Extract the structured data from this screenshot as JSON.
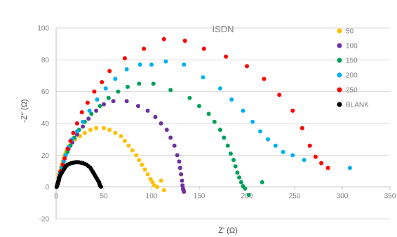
{
  "chart_data": {
    "type": "scatter",
    "title": "ISDN",
    "xlabel": "Z' (Ω)",
    "ylabel": "-Z'' (Ω)",
    "xlim": [
      0,
      350
    ],
    "ylim": [
      -20,
      100
    ],
    "x_ticks": [
      "0",
      "50",
      "100",
      "150",
      "200",
      "250",
      "300",
      "350"
    ],
    "y_ticks": [
      "-20",
      "0",
      "20",
      "40",
      "60",
      "80",
      "100"
    ],
    "grid": "horizontal",
    "legend_position": "right",
    "series": [
      {
        "name": "50",
        "color": "#ffc000",
        "points": [
          [
            1,
            0.5
          ],
          [
            1.5,
            2
          ],
          [
            2,
            4
          ],
          [
            2.5,
            6
          ],
          [
            3,
            8
          ],
          [
            4,
            10
          ],
          [
            5,
            12
          ],
          [
            6,
            14
          ],
          [
            7,
            16
          ],
          [
            8,
            18
          ],
          [
            9,
            20
          ],
          [
            10,
            22
          ],
          [
            12,
            24
          ],
          [
            14,
            26
          ],
          [
            16,
            28
          ],
          [
            20,
            30
          ],
          [
            25,
            32
          ],
          [
            30,
            34
          ],
          [
            36,
            36
          ],
          [
            42,
            37
          ],
          [
            50,
            37
          ],
          [
            56,
            36
          ],
          [
            62,
            34
          ],
          [
            68,
            32
          ],
          [
            72,
            29
          ],
          [
            76,
            26
          ],
          [
            80,
            23
          ],
          [
            84,
            20
          ],
          [
            87,
            17
          ],
          [
            90,
            14
          ],
          [
            93,
            11
          ],
          [
            96,
            8
          ],
          [
            99,
            5
          ],
          [
            101,
            3
          ],
          [
            103,
            1
          ],
          [
            106,
            0
          ],
          [
            110,
            4
          ],
          [
            113,
            -2
          ]
        ]
      },
      {
        "name": "100",
        "color": "#7030a0",
        "points": [
          [
            1,
            0.5
          ],
          [
            2,
            3
          ],
          [
            3,
            6
          ],
          [
            4,
            9
          ],
          [
            6,
            12
          ],
          [
            8,
            16
          ],
          [
            10,
            20
          ],
          [
            13,
            24
          ],
          [
            17,
            28
          ],
          [
            22,
            33
          ],
          [
            28,
            38
          ],
          [
            34,
            43
          ],
          [
            42,
            48
          ],
          [
            50,
            52
          ],
          [
            60,
            54
          ],
          [
            74,
            54
          ],
          [
            86,
            51
          ],
          [
            96,
            48
          ],
          [
            104,
            44
          ],
          [
            110,
            40
          ],
          [
            116,
            36
          ],
          [
            120,
            31
          ],
          [
            124,
            26
          ],
          [
            127,
            20
          ],
          [
            129,
            16
          ],
          [
            130,
            12
          ],
          [
            131,
            8
          ],
          [
            132,
            4
          ],
          [
            132.5,
            1
          ],
          [
            133,
            -1
          ],
          [
            133.5,
            -2
          ],
          [
            134,
            -3
          ]
        ]
      },
      {
        "name": "150",
        "color": "#00a05a",
        "points": [
          [
            1,
            0.5
          ],
          [
            2,
            3
          ],
          [
            3,
            6
          ],
          [
            5,
            10
          ],
          [
            7,
            14
          ],
          [
            9,
            18
          ],
          [
            12,
            22
          ],
          [
            15,
            26
          ],
          [
            19,
            31
          ],
          [
            24,
            36
          ],
          [
            30,
            41
          ],
          [
            37,
            46
          ],
          [
            46,
            51
          ],
          [
            55,
            56
          ],
          [
            65,
            60
          ],
          [
            75,
            63
          ],
          [
            87,
            65
          ],
          [
            102,
            65
          ],
          [
            120,
            61
          ],
          [
            140,
            56
          ],
          [
            150,
            51
          ],
          [
            160,
            46
          ],
          [
            166,
            41
          ],
          [
            172,
            36
          ],
          [
            176,
            31
          ],
          [
            180,
            26
          ],
          [
            183,
            21
          ],
          [
            186,
            17
          ],
          [
            188,
            13
          ],
          [
            190,
            9
          ],
          [
            192,
            6
          ],
          [
            194,
            3
          ],
          [
            196,
            0.5
          ],
          [
            198,
            -1
          ],
          [
            202,
            -5
          ],
          [
            216,
            3
          ]
        ]
      },
      {
        "name": "200",
        "color": "#00b0f0",
        "points": [
          [
            2,
            2
          ],
          [
            3,
            5
          ],
          [
            4,
            8
          ],
          [
            6,
            12
          ],
          [
            8,
            16
          ],
          [
            10,
            20
          ],
          [
            13,
            25
          ],
          [
            17,
            30
          ],
          [
            22,
            35
          ],
          [
            28,
            41
          ],
          [
            35,
            48
          ],
          [
            43,
            55
          ],
          [
            52,
            62
          ],
          [
            62,
            68
          ],
          [
            74,
            74
          ],
          [
            88,
            77
          ],
          [
            100,
            77
          ],
          [
            115,
            79
          ],
          [
            134,
            77
          ],
          [
            154,
            69
          ],
          [
            172,
            62
          ],
          [
            184,
            55
          ],
          [
            196,
            48
          ],
          [
            206,
            41
          ],
          [
            214,
            35
          ],
          [
            222,
            30
          ],
          [
            230,
            26
          ],
          [
            238,
            22
          ],
          [
            248,
            20
          ],
          [
            260,
            17
          ],
          [
            308,
            12
          ]
        ]
      },
      {
        "name": "250",
        "color": "#ff0000",
        "points": [
          [
            2,
            2
          ],
          [
            3,
            4
          ],
          [
            4,
            7
          ],
          [
            5,
            10
          ],
          [
            7,
            14
          ],
          [
            9,
            18
          ],
          [
            12,
            24
          ],
          [
            15,
            29
          ],
          [
            18,
            34
          ],
          [
            22,
            40
          ],
          [
            27,
            47
          ],
          [
            33,
            53
          ],
          [
            40,
            60
          ],
          [
            48,
            66
          ],
          [
            56,
            73
          ],
          [
            72,
            81
          ],
          [
            92,
            87
          ],
          [
            113,
            93
          ],
          [
            135,
            92
          ],
          [
            155,
            87
          ],
          [
            178,
            82
          ],
          [
            200,
            76
          ],
          [
            218,
            68
          ],
          [
            234,
            58
          ],
          [
            248,
            48
          ],
          [
            258,
            37
          ],
          [
            266,
            26
          ],
          [
            272,
            19
          ],
          [
            278,
            15
          ],
          [
            285,
            12
          ]
        ]
      },
      {
        "name": "BLANK",
        "color": "#000000",
        "points": [
          [
            0.5,
            0
          ],
          [
            1,
            1
          ],
          [
            1.5,
            2
          ],
          [
            2,
            3
          ],
          [
            2.5,
            4
          ],
          [
            3,
            5
          ],
          [
            3.5,
            6
          ],
          [
            4,
            7
          ],
          [
            5,
            8
          ],
          [
            6,
            9
          ],
          [
            7,
            10
          ],
          [
            8,
            11
          ],
          [
            9,
            12
          ],
          [
            10,
            13
          ],
          [
            11,
            13.5
          ],
          [
            12,
            14
          ],
          [
            14,
            14.5
          ],
          [
            16,
            15
          ],
          [
            18,
            15.3
          ],
          [
            20,
            15.5
          ],
          [
            22,
            15.6
          ],
          [
            24,
            15.5
          ],
          [
            26,
            15.3
          ],
          [
            28,
            15
          ],
          [
            30,
            14.5
          ],
          [
            32,
            14
          ],
          [
            34,
            13
          ],
          [
            36,
            12
          ],
          [
            37,
            11
          ],
          [
            38,
            10
          ],
          [
            39,
            9
          ],
          [
            40,
            8
          ],
          [
            41,
            7
          ],
          [
            42,
            6
          ],
          [
            43,
            5
          ],
          [
            44,
            4
          ],
          [
            45,
            3
          ],
          [
            45.5,
            2
          ],
          [
            46,
            1
          ],
          [
            46.5,
            0.5
          ],
          [
            47,
            0.2
          ]
        ]
      }
    ]
  }
}
